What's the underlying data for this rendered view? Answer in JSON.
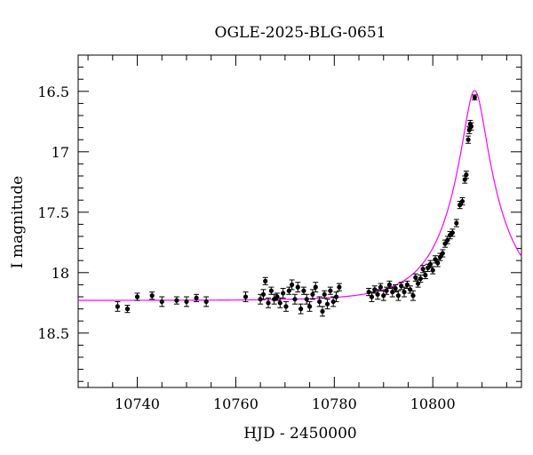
{
  "chart_data": {
    "type": "scatter",
    "title": "OGLE-2025-BLG-0651",
    "xlabel": "HJD - 2450000",
    "ylabel": "I magnitude",
    "xlim": [
      10728,
      10818
    ],
    "ylim": [
      18.95,
      16.2
    ],
    "y_inverted": true,
    "x_ticks": [
      10740,
      10760,
      10780,
      10800
    ],
    "y_ticks": [
      "16.5",
      "17",
      "17.5",
      "18",
      "18.5"
    ],
    "grid": false,
    "legend": "none",
    "colors": {
      "points": "#000000",
      "model": "#ff00ff"
    },
    "series": [
      {
        "type": "scatter_errorbars",
        "points": [
          [
            10736,
            18.28,
            0.04
          ],
          [
            10738,
            18.3,
            0.03
          ],
          [
            10740,
            18.2,
            0.03
          ],
          [
            10743,
            18.19,
            0.03
          ],
          [
            10745,
            18.24,
            0.04
          ],
          [
            10748,
            18.23,
            0.03
          ],
          [
            10750,
            18.24,
            0.04
          ],
          [
            10752,
            18.21,
            0.03
          ],
          [
            10754,
            18.24,
            0.04
          ],
          [
            10762,
            18.2,
            0.04
          ],
          [
            10765,
            18.22,
            0.04
          ],
          [
            10765.6,
            18.18,
            0.04
          ],
          [
            10766,
            18.07,
            0.03
          ],
          [
            10766.6,
            18.25,
            0.04
          ],
          [
            10767.2,
            18.15,
            0.03
          ],
          [
            10767.8,
            18.22,
            0.04
          ],
          [
            10768.4,
            18.2,
            0.03
          ],
          [
            10769,
            18.25,
            0.04
          ],
          [
            10769.6,
            18.17,
            0.04
          ],
          [
            10770.2,
            18.28,
            0.04
          ],
          [
            10770.8,
            18.15,
            0.03
          ],
          [
            10771.4,
            18.1,
            0.04
          ],
          [
            10772,
            18.22,
            0.04
          ],
          [
            10772.6,
            18.12,
            0.04
          ],
          [
            10773.2,
            18.3,
            0.04
          ],
          [
            10773.8,
            18.15,
            0.03
          ],
          [
            10774.4,
            18.22,
            0.04
          ],
          [
            10775,
            18.28,
            0.04
          ],
          [
            10775.6,
            18.18,
            0.04
          ],
          [
            10776.2,
            18.12,
            0.04
          ],
          [
            10777,
            18.24,
            0.04
          ],
          [
            10777.6,
            18.32,
            0.04
          ],
          [
            10778,
            18.18,
            0.03
          ],
          [
            10778.6,
            18.26,
            0.04
          ],
          [
            10779.2,
            18.15,
            0.03
          ],
          [
            10779.8,
            18.24,
            0.04
          ],
          [
            10780.4,
            18.2,
            0.04
          ],
          [
            10781,
            18.12,
            0.03
          ],
          [
            10787,
            18.16,
            0.03
          ],
          [
            10787.6,
            18.2,
            0.04
          ],
          [
            10788.2,
            18.14,
            0.03
          ],
          [
            10788.8,
            18.18,
            0.04
          ],
          [
            10789.4,
            18.12,
            0.03
          ],
          [
            10790,
            18.19,
            0.04
          ],
          [
            10790.6,
            18.15,
            0.03
          ],
          [
            10791.2,
            18.1,
            0.03
          ],
          [
            10791.8,
            18.16,
            0.04
          ],
          [
            10792.4,
            18.13,
            0.03
          ],
          [
            10793,
            18.19,
            0.04
          ],
          [
            10793.6,
            18.11,
            0.03
          ],
          [
            10794.2,
            18.16,
            0.04
          ],
          [
            10794.8,
            18.1,
            0.03
          ],
          [
            10795.4,
            18.14,
            0.03
          ],
          [
            10796,
            18.19,
            0.04
          ],
          [
            10796.5,
            18.04,
            0.03
          ],
          [
            10797,
            18.09,
            0.03
          ],
          [
            10797.5,
            18.05,
            0.03
          ],
          [
            10798,
            17.97,
            0.03
          ],
          [
            10798.5,
            18.02,
            0.03
          ],
          [
            10799,
            17.96,
            0.03
          ],
          [
            10799.5,
            17.93,
            0.03
          ],
          [
            10800,
            17.98,
            0.03
          ],
          [
            10800.5,
            17.89,
            0.03
          ],
          [
            10801,
            17.92,
            0.03
          ],
          [
            10801.5,
            17.87,
            0.03
          ],
          [
            10802,
            17.84,
            0.03
          ],
          [
            10802.5,
            17.76,
            0.03
          ],
          [
            10803,
            17.73,
            0.03
          ],
          [
            10803.5,
            17.69,
            0.03
          ],
          [
            10804,
            17.67,
            0.03
          ],
          [
            10804.8,
            17.59,
            0.03
          ],
          [
            10805.5,
            17.44,
            0.03
          ],
          [
            10806,
            17.41,
            0.03
          ],
          [
            10806.5,
            17.23,
            0.03
          ],
          [
            10806.8,
            17.19,
            0.03
          ],
          [
            10807.2,
            16.9,
            0.03
          ],
          [
            10807.4,
            16.82,
            0.03
          ],
          [
            10807.6,
            16.77,
            0.03
          ],
          [
            10807.8,
            16.79,
            0.03
          ],
          [
            10808.5,
            16.55,
            0.02
          ]
        ]
      },
      {
        "type": "line",
        "model": {
          "baseline": 18.23,
          "t0": 10808.5,
          "tE": 10.5,
          "u0": 0.205,
          "x_range": [
            10728,
            10818
          ]
        }
      }
    ]
  }
}
